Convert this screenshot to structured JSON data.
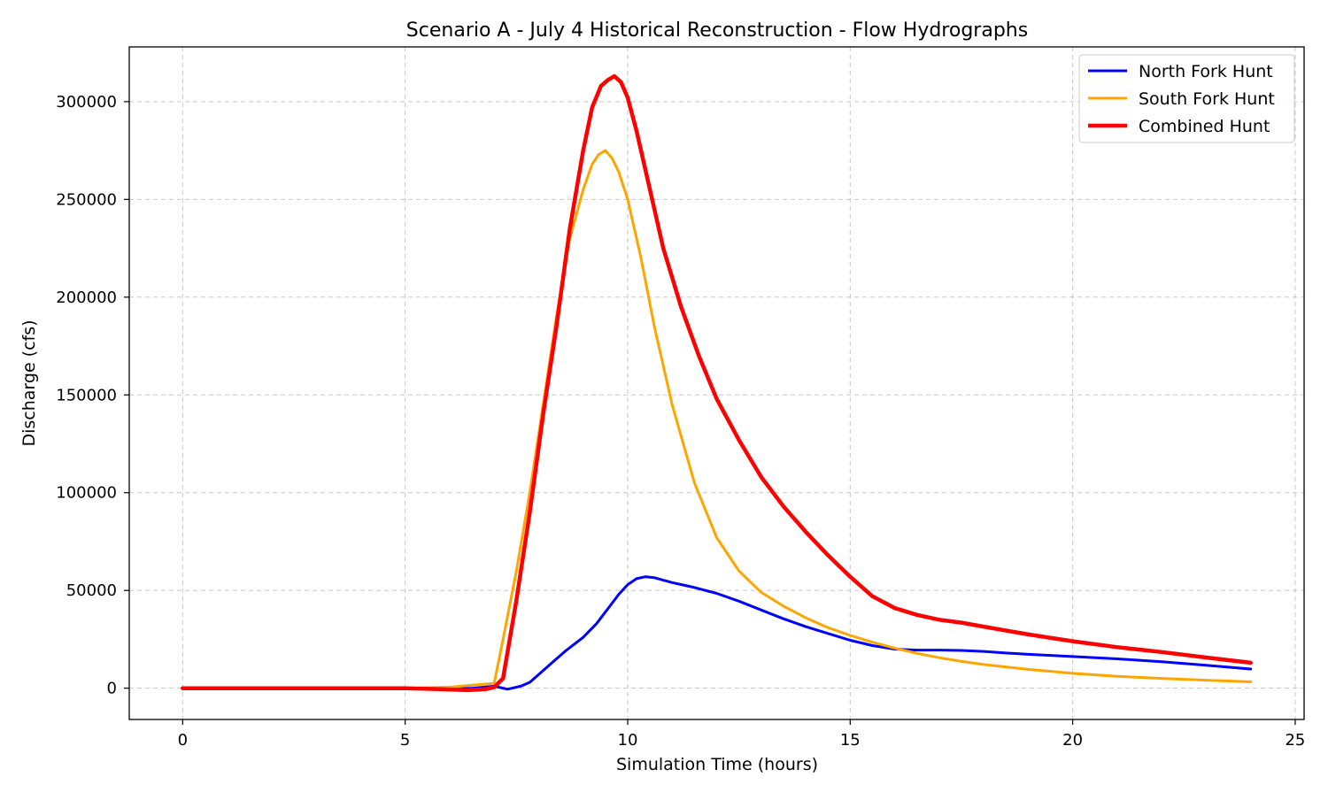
{
  "chart_data": {
    "type": "line",
    "title": "Scenario A - July 4 Historical Reconstruction - Flow Hydrographs",
    "xlabel": "Simulation Time (hours)",
    "ylabel": "Discharge (cfs)",
    "xlim": [
      -1.2,
      25.2
    ],
    "ylim": [
      -16000,
      328000
    ],
    "xticks": [
      0,
      5,
      10,
      15,
      20,
      25
    ],
    "yticks": [
      0,
      50000,
      100000,
      150000,
      200000,
      250000,
      300000
    ],
    "xtick_labels": [
      "0",
      "5",
      "10",
      "15",
      "20",
      "25"
    ],
    "ytick_labels": [
      "0",
      "50000",
      "100000",
      "150000",
      "200000",
      "250000",
      "300000"
    ],
    "grid": true,
    "legend_position": "upper right",
    "series": [
      {
        "name": "North Fork Hunt",
        "color": "#0000ff",
        "points": [
          [
            0,
            0
          ],
          [
            5,
            0
          ],
          [
            6.5,
            0
          ],
          [
            7.0,
            1000
          ],
          [
            7.3,
            -500
          ],
          [
            7.6,
            1000
          ],
          [
            7.8,
            3000
          ],
          [
            8.0,
            7000
          ],
          [
            8.3,
            13000
          ],
          [
            8.6,
            19000
          ],
          [
            9.0,
            26000
          ],
          [
            9.3,
            33000
          ],
          [
            9.6,
            42000
          ],
          [
            9.8,
            48000
          ],
          [
            10.0,
            53000
          ],
          [
            10.2,
            56000
          ],
          [
            10.4,
            57000
          ],
          [
            10.6,
            56500
          ],
          [
            11.0,
            54000
          ],
          [
            11.5,
            51500
          ],
          [
            12.0,
            48500
          ],
          [
            12.5,
            44500
          ],
          [
            13.0,
            40000
          ],
          [
            13.5,
            35500
          ],
          [
            14.0,
            31500
          ],
          [
            14.5,
            28000
          ],
          [
            15.0,
            24500
          ],
          [
            15.5,
            21800
          ],
          [
            16.0,
            20000
          ],
          [
            16.5,
            19500
          ],
          [
            17.0,
            19500
          ],
          [
            17.5,
            19300
          ],
          [
            18.0,
            18800
          ],
          [
            18.5,
            18000
          ],
          [
            19.0,
            17300
          ],
          [
            20.0,
            16200
          ],
          [
            21.0,
            15000
          ],
          [
            22.0,
            13500
          ],
          [
            23.0,
            11700
          ],
          [
            24.0,
            9800
          ]
        ]
      },
      {
        "name": "South Fork Hunt",
        "color": "#ffa500",
        "points": [
          [
            0,
            0
          ],
          [
            5,
            0
          ],
          [
            6.0,
            500
          ],
          [
            6.5,
            1500
          ],
          [
            7.0,
            2500
          ],
          [
            7.2,
            25000
          ],
          [
            7.5,
            60000
          ],
          [
            7.8,
            100000
          ],
          [
            8.1,
            145000
          ],
          [
            8.4,
            190000
          ],
          [
            8.7,
            230000
          ],
          [
            9.0,
            255000
          ],
          [
            9.2,
            268000
          ],
          [
            9.35,
            273000
          ],
          [
            9.5,
            275000
          ],
          [
            9.65,
            271000
          ],
          [
            9.8,
            264000
          ],
          [
            10.0,
            250000
          ],
          [
            10.3,
            220000
          ],
          [
            10.6,
            185000
          ],
          [
            11.0,
            145000
          ],
          [
            11.5,
            105000
          ],
          [
            12.0,
            77000
          ],
          [
            12.5,
            60000
          ],
          [
            13.0,
            49000
          ],
          [
            13.5,
            42000
          ],
          [
            14.0,
            36000
          ],
          [
            14.5,
            31000
          ],
          [
            15.0,
            27000
          ],
          [
            15.5,
            23500
          ],
          [
            16.0,
            20500
          ],
          [
            16.5,
            17800
          ],
          [
            17.0,
            15600
          ],
          [
            17.5,
            13700
          ],
          [
            18.0,
            12100
          ],
          [
            19.0,
            9600
          ],
          [
            20.0,
            7600
          ],
          [
            21.0,
            6100
          ],
          [
            22.0,
            5000
          ],
          [
            23.0,
            4100
          ],
          [
            24.0,
            3300
          ]
        ]
      },
      {
        "name": "Combined Hunt",
        "color": "#ff0000",
        "points": [
          [
            0,
            0
          ],
          [
            5,
            0
          ],
          [
            5.8,
            -500
          ],
          [
            6.4,
            -1000
          ],
          [
            6.8,
            -500
          ],
          [
            7.0,
            500
          ],
          [
            7.2,
            5000
          ],
          [
            7.5,
            45000
          ],
          [
            7.8,
            90000
          ],
          [
            8.1,
            140000
          ],
          [
            8.4,
            185000
          ],
          [
            8.7,
            235000
          ],
          [
            9.0,
            275000
          ],
          [
            9.2,
            297000
          ],
          [
            9.4,
            308000
          ],
          [
            9.55,
            311000
          ],
          [
            9.7,
            313000
          ],
          [
            9.85,
            310000
          ],
          [
            10.0,
            302000
          ],
          [
            10.2,
            285000
          ],
          [
            10.5,
            255000
          ],
          [
            10.8,
            225000
          ],
          [
            11.2,
            195000
          ],
          [
            11.6,
            170000
          ],
          [
            12.0,
            148000
          ],
          [
            12.5,
            127000
          ],
          [
            13.0,
            108000
          ],
          [
            13.5,
            93000
          ],
          [
            14.0,
            80000
          ],
          [
            14.5,
            68000
          ],
          [
            15.0,
            57000
          ],
          [
            15.5,
            47000
          ],
          [
            16.0,
            41000
          ],
          [
            16.5,
            37500
          ],
          [
            17.0,
            35000
          ],
          [
            17.5,
            33500
          ],
          [
            18.0,
            31500
          ],
          [
            19.0,
            27500
          ],
          [
            20.0,
            24000
          ],
          [
            21.0,
            21000
          ],
          [
            22.0,
            18500
          ],
          [
            23.0,
            15700
          ],
          [
            24.0,
            13000
          ]
        ]
      }
    ]
  }
}
